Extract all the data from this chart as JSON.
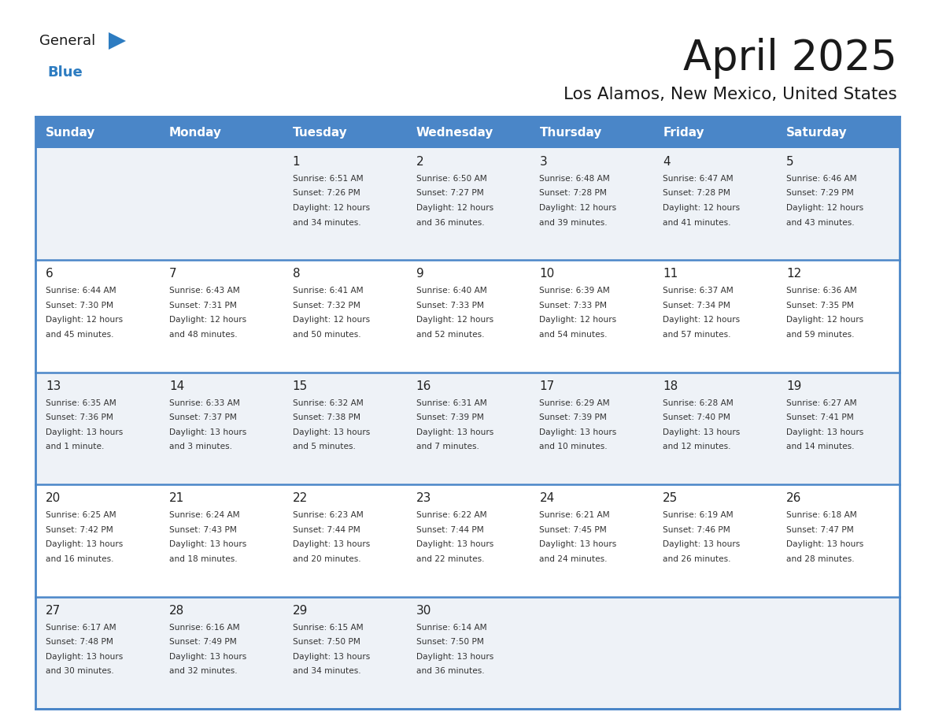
{
  "title": "April 2025",
  "subtitle": "Los Alamos, New Mexico, United States",
  "days_of_week": [
    "Sunday",
    "Monday",
    "Tuesday",
    "Wednesday",
    "Thursday",
    "Friday",
    "Saturday"
  ],
  "header_bg": "#4a86c8",
  "header_text_color": "#ffffff",
  "cell_bg_light": "#eef2f7",
  "cell_bg_white": "#ffffff",
  "border_color": "#4a86c8",
  "row_divider_color": "#4a86c8",
  "text_color_dark": "#333333",
  "text_color_num": "#222222",
  "logo_general_color": "#1a1a1a",
  "logo_blue_color": "#2d7cc1",
  "logo_triangle_color": "#2d7cc1",
  "calendar": [
    [
      {
        "day": null,
        "sunrise": null,
        "sunset": null,
        "daylight": null
      },
      {
        "day": null,
        "sunrise": null,
        "sunset": null,
        "daylight": null
      },
      {
        "day": 1,
        "sunrise": "6:51 AM",
        "sunset": "7:26 PM",
        "daylight": "12 hours and 34 minutes."
      },
      {
        "day": 2,
        "sunrise": "6:50 AM",
        "sunset": "7:27 PM",
        "daylight": "12 hours and 36 minutes."
      },
      {
        "day": 3,
        "sunrise": "6:48 AM",
        "sunset": "7:28 PM",
        "daylight": "12 hours and 39 minutes."
      },
      {
        "day": 4,
        "sunrise": "6:47 AM",
        "sunset": "7:28 PM",
        "daylight": "12 hours and 41 minutes."
      },
      {
        "day": 5,
        "sunrise": "6:46 AM",
        "sunset": "7:29 PM",
        "daylight": "12 hours and 43 minutes."
      }
    ],
    [
      {
        "day": 6,
        "sunrise": "6:44 AM",
        "sunset": "7:30 PM",
        "daylight": "12 hours and 45 minutes."
      },
      {
        "day": 7,
        "sunrise": "6:43 AM",
        "sunset": "7:31 PM",
        "daylight": "12 hours and 48 minutes."
      },
      {
        "day": 8,
        "sunrise": "6:41 AM",
        "sunset": "7:32 PM",
        "daylight": "12 hours and 50 minutes."
      },
      {
        "day": 9,
        "sunrise": "6:40 AM",
        "sunset": "7:33 PM",
        "daylight": "12 hours and 52 minutes."
      },
      {
        "day": 10,
        "sunrise": "6:39 AM",
        "sunset": "7:33 PM",
        "daylight": "12 hours and 54 minutes."
      },
      {
        "day": 11,
        "sunrise": "6:37 AM",
        "sunset": "7:34 PM",
        "daylight": "12 hours and 57 minutes."
      },
      {
        "day": 12,
        "sunrise": "6:36 AM",
        "sunset": "7:35 PM",
        "daylight": "12 hours and 59 minutes."
      }
    ],
    [
      {
        "day": 13,
        "sunrise": "6:35 AM",
        "sunset": "7:36 PM",
        "daylight": "13 hours and 1 minute."
      },
      {
        "day": 14,
        "sunrise": "6:33 AM",
        "sunset": "7:37 PM",
        "daylight": "13 hours and 3 minutes."
      },
      {
        "day": 15,
        "sunrise": "6:32 AM",
        "sunset": "7:38 PM",
        "daylight": "13 hours and 5 minutes."
      },
      {
        "day": 16,
        "sunrise": "6:31 AM",
        "sunset": "7:39 PM",
        "daylight": "13 hours and 7 minutes."
      },
      {
        "day": 17,
        "sunrise": "6:29 AM",
        "sunset": "7:39 PM",
        "daylight": "13 hours and 10 minutes."
      },
      {
        "day": 18,
        "sunrise": "6:28 AM",
        "sunset": "7:40 PM",
        "daylight": "13 hours and 12 minutes."
      },
      {
        "day": 19,
        "sunrise": "6:27 AM",
        "sunset": "7:41 PM",
        "daylight": "13 hours and 14 minutes."
      }
    ],
    [
      {
        "day": 20,
        "sunrise": "6:25 AM",
        "sunset": "7:42 PM",
        "daylight": "13 hours and 16 minutes."
      },
      {
        "day": 21,
        "sunrise": "6:24 AM",
        "sunset": "7:43 PM",
        "daylight": "13 hours and 18 minutes."
      },
      {
        "day": 22,
        "sunrise": "6:23 AM",
        "sunset": "7:44 PM",
        "daylight": "13 hours and 20 minutes."
      },
      {
        "day": 23,
        "sunrise": "6:22 AM",
        "sunset": "7:44 PM",
        "daylight": "13 hours and 22 minutes."
      },
      {
        "day": 24,
        "sunrise": "6:21 AM",
        "sunset": "7:45 PM",
        "daylight": "13 hours and 24 minutes."
      },
      {
        "day": 25,
        "sunrise": "6:19 AM",
        "sunset": "7:46 PM",
        "daylight": "13 hours and 26 minutes."
      },
      {
        "day": 26,
        "sunrise": "6:18 AM",
        "sunset": "7:47 PM",
        "daylight": "13 hours and 28 minutes."
      }
    ],
    [
      {
        "day": 27,
        "sunrise": "6:17 AM",
        "sunset": "7:48 PM",
        "daylight": "13 hours and 30 minutes."
      },
      {
        "day": 28,
        "sunrise": "6:16 AM",
        "sunset": "7:49 PM",
        "daylight": "13 hours and 32 minutes."
      },
      {
        "day": 29,
        "sunrise": "6:15 AM",
        "sunset": "7:50 PM",
        "daylight": "13 hours and 34 minutes."
      },
      {
        "day": 30,
        "sunrise": "6:14 AM",
        "sunset": "7:50 PM",
        "daylight": "13 hours and 36 minutes."
      },
      {
        "day": null,
        "sunrise": null,
        "sunset": null,
        "daylight": null
      },
      {
        "day": null,
        "sunrise": null,
        "sunset": null,
        "daylight": null
      },
      {
        "day": null,
        "sunrise": null,
        "sunset": null,
        "daylight": null
      }
    ]
  ]
}
